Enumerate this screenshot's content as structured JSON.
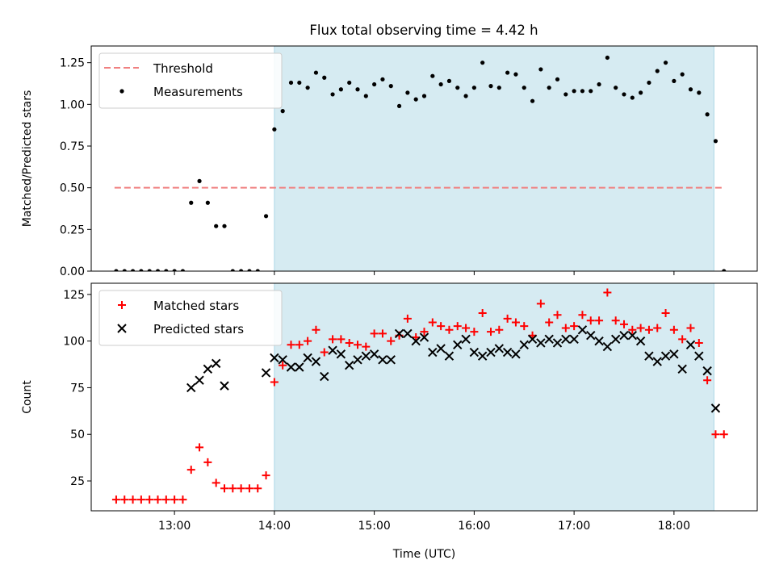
{
  "title": "Flux total observing time = 4.42 h",
  "colors": {
    "threshold": "#f08080",
    "measurement": "#000000",
    "matched": "#ff0000",
    "predicted": "#000000",
    "shade": "#add8e6"
  },
  "chart_data": [
    {
      "type": "scatter",
      "panel": "top",
      "ylabel": "Matched/Predicted stars",
      "xlabel": "",
      "ylim": [
        0,
        1.35
      ],
      "yticks": [
        "0.00",
        "0.25",
        "0.50",
        "0.75",
        "1.00",
        "1.25"
      ],
      "legend": {
        "placement": "top-left",
        "entries": [
          "Threshold",
          "Measurements"
        ]
      },
      "shaded_region": {
        "x_start": "14:00",
        "x_end": "18:24"
      },
      "threshold": {
        "name": "Threshold",
        "value": 0.5,
        "x_start": "12:24",
        "x_end": "18:30"
      },
      "series": [
        {
          "name": "Measurements",
          "marker": "dot",
          "x": [
            "12:25",
            "12:30",
            "12:35",
            "12:40",
            "12:45",
            "12:50",
            "12:55",
            "13:00",
            "13:05",
            "13:10",
            "13:15",
            "13:20",
            "13:25",
            "13:30",
            "13:35",
            "13:40",
            "13:45",
            "13:50",
            "13:55",
            "14:00",
            "14:05",
            "14:10",
            "14:15",
            "14:20",
            "14:25",
            "14:30",
            "14:35",
            "14:40",
            "14:45",
            "14:50",
            "14:55",
            "15:00",
            "15:05",
            "15:10",
            "15:15",
            "15:20",
            "15:25",
            "15:30",
            "15:35",
            "15:40",
            "15:45",
            "15:50",
            "15:55",
            "16:00",
            "16:05",
            "16:10",
            "16:15",
            "16:20",
            "16:25",
            "16:30",
            "16:35",
            "16:40",
            "16:45",
            "16:50",
            "16:55",
            "17:00",
            "17:05",
            "17:10",
            "17:15",
            "17:20",
            "17:25",
            "17:30",
            "17:35",
            "17:40",
            "17:45",
            "17:50",
            "17:55",
            "18:00",
            "18:05",
            "18:10",
            "18:15",
            "18:20",
            "18:25",
            "18:30"
          ],
          "y": [
            0,
            0,
            0,
            0,
            0,
            0,
            0,
            0,
            0,
            0.41,
            0.54,
            0.41,
            0.27,
            0.27,
            0,
            0,
            0,
            0,
            0.33,
            0.85,
            0.96,
            1.13,
            1.13,
            1.1,
            1.19,
            1.16,
            1.06,
            1.09,
            1.13,
            1.09,
            1.05,
            1.12,
            1.15,
            1.11,
            0.99,
            1.07,
            1.03,
            1.05,
            1.17,
            1.12,
            1.14,
            1.1,
            1.05,
            1.1,
            1.25,
            1.11,
            1.1,
            1.19,
            1.18,
            1.1,
            1.02,
            1.21,
            1.1,
            1.15,
            1.06,
            1.08,
            1.08,
            1.08,
            1.12,
            1.28,
            1.1,
            1.06,
            1.04,
            1.07,
            1.13,
            1.2,
            1.25,
            1.14,
            1.18,
            1.09,
            1.07,
            0.94,
            0.78,
            0
          ]
        }
      ]
    },
    {
      "type": "scatter",
      "panel": "bottom",
      "ylabel": "Count",
      "xlabel": "Time (UTC)",
      "ylim": [
        9,
        131
      ],
      "yticks": [
        "25",
        "50",
        "75",
        "100",
        "125"
      ],
      "xticks": [
        "13:00",
        "14:00",
        "15:00",
        "16:00",
        "17:00",
        "18:00"
      ],
      "xlim": [
        "12:10",
        "18:50"
      ],
      "legend": {
        "placement": "top-left",
        "entries": [
          "Matched stars",
          "Predicted stars"
        ]
      },
      "shaded_region": {
        "x_start": "14:00",
        "x_end": "18:24"
      },
      "series": [
        {
          "name": "Matched stars",
          "marker": "plus",
          "x": [
            "12:25",
            "12:30",
            "12:35",
            "12:40",
            "12:45",
            "12:50",
            "12:55",
            "13:00",
            "13:05",
            "13:10",
            "13:15",
            "13:20",
            "13:25",
            "13:30",
            "13:35",
            "13:40",
            "13:45",
            "13:50",
            "13:55",
            "14:00",
            "14:05",
            "14:10",
            "14:15",
            "14:20",
            "14:25",
            "14:30",
            "14:35",
            "14:40",
            "14:45",
            "14:50",
            "14:55",
            "15:00",
            "15:05",
            "15:10",
            "15:15",
            "15:20",
            "15:25",
            "15:30",
            "15:35",
            "15:40",
            "15:45",
            "15:50",
            "15:55",
            "16:00",
            "16:05",
            "16:10",
            "16:15",
            "16:20",
            "16:25",
            "16:30",
            "16:35",
            "16:40",
            "16:45",
            "16:50",
            "16:55",
            "17:00",
            "17:05",
            "17:10",
            "17:15",
            "17:20",
            "17:25",
            "17:30",
            "17:35",
            "17:40",
            "17:45",
            "17:50",
            "17:55",
            "18:00",
            "18:05",
            "18:10",
            "18:15",
            "18:20",
            "18:25",
            "18:30"
          ],
          "y": [
            15,
            15,
            15,
            15,
            15,
            15,
            15,
            15,
            15,
            31,
            43,
            35,
            24,
            21,
            21,
            21,
            21,
            21,
            28,
            78,
            87,
            98,
            98,
            100,
            106,
            94,
            101,
            101,
            99,
            98,
            97,
            104,
            104,
            100,
            103,
            112,
            102,
            105,
            110,
            108,
            106,
            108,
            107,
            105,
            115,
            105,
            106,
            112,
            110,
            108,
            103,
            120,
            110,
            114,
            107,
            108,
            114,
            111,
            111,
            126,
            111,
            109,
            106,
            107,
            106,
            107,
            115,
            106,
            101,
            107,
            99,
            79,
            50,
            50
          ]
        },
        {
          "name": "Predicted stars",
          "marker": "x",
          "x": [
            "13:10",
            "13:15",
            "13:20",
            "13:25",
            "13:30",
            "13:55",
            "14:00",
            "14:05",
            "14:10",
            "14:15",
            "14:20",
            "14:25",
            "14:30",
            "14:35",
            "14:40",
            "14:45",
            "14:50",
            "14:55",
            "15:00",
            "15:05",
            "15:10",
            "15:15",
            "15:20",
            "15:25",
            "15:30",
            "15:35",
            "15:40",
            "15:45",
            "15:50",
            "15:55",
            "16:00",
            "16:05",
            "16:10",
            "16:15",
            "16:20",
            "16:25",
            "16:30",
            "16:35",
            "16:40",
            "16:45",
            "16:50",
            "16:55",
            "17:00",
            "17:05",
            "17:10",
            "17:15",
            "17:20",
            "17:25",
            "17:30",
            "17:35",
            "17:40",
            "17:45",
            "17:50",
            "17:55",
            "18:00",
            "18:05",
            "18:10",
            "18:15",
            "18:20",
            "18:25"
          ],
          "y": [
            75,
            79,
            85,
            88,
            76,
            83,
            91,
            90,
            86,
            86,
            91,
            89,
            81,
            95,
            93,
            87,
            90,
            92,
            93,
            90,
            90,
            104,
            104,
            100,
            102,
            94,
            96,
            92,
            98,
            101,
            94,
            92,
            94,
            96,
            94,
            93,
            98,
            101,
            99,
            101,
            99,
            101,
            101,
            106,
            103,
            100,
            97,
            101,
            103,
            103,
            100,
            92,
            89,
            92,
            93,
            85,
            98,
            92,
            84,
            64
          ]
        }
      ]
    }
  ]
}
